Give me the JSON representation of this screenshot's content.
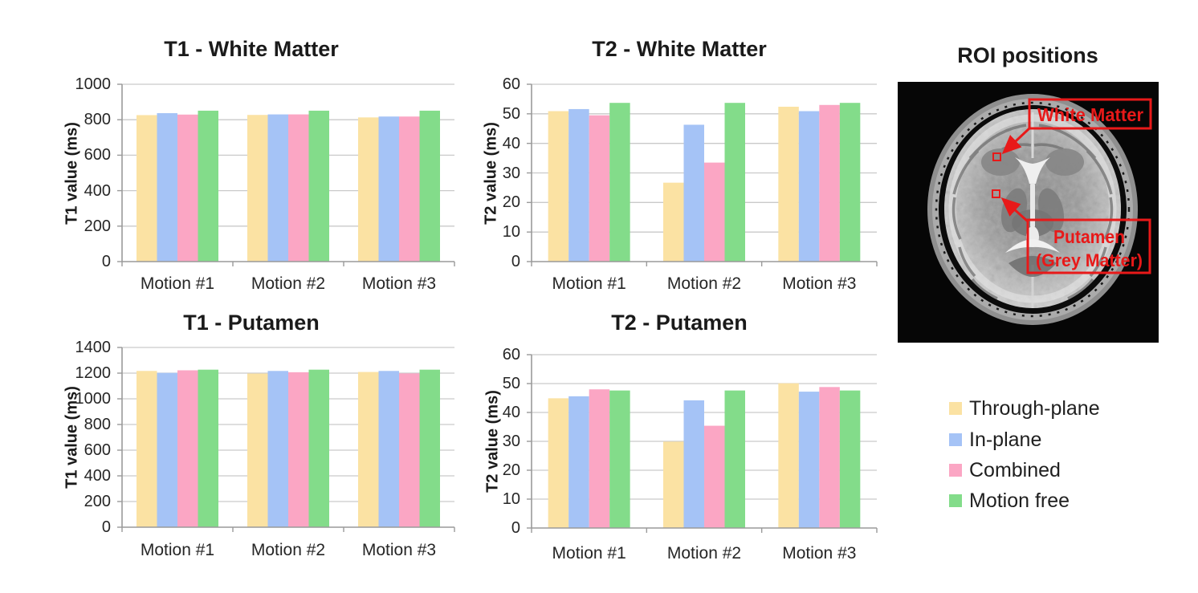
{
  "figure": {
    "background": "#ffffff",
    "roi_panel": {
      "title": "ROI positions",
      "white_matter_label": "White Matter",
      "putamen_label_line1": "Putamen",
      "putamen_label_line2": "(Grey Matter)",
      "annotation_color": "#e81919"
    },
    "legend": {
      "position": "right-bottom",
      "items": [
        {
          "label": "Through-plane",
          "color": "#fbe2a3"
        },
        {
          "label": "In-plane",
          "color": "#a5c3f6"
        },
        {
          "label": "Combined",
          "color": "#fba6c4"
        },
        {
          "label": "Motion free",
          "color": "#83dc8a"
        }
      ]
    }
  },
  "chart_data": [
    {
      "type": "bar",
      "title": "T1 - White Matter",
      "ylabel": "T1 value (ms)",
      "ylim": [
        0,
        1000
      ],
      "ytick_step": 200,
      "yticks": [
        0,
        200,
        400,
        600,
        800,
        1000
      ],
      "grid": true,
      "categories": [
        "Motion #1",
        "Motion #2",
        "Motion #3"
      ],
      "series": [
        {
          "name": "Through-plane",
          "values": [
            826,
            827,
            813
          ]
        },
        {
          "name": "In-plane",
          "values": [
            837,
            830,
            818
          ]
        },
        {
          "name": "Combined",
          "values": [
            829,
            830,
            818
          ]
        },
        {
          "name": "Motion free",
          "values": [
            851,
            851,
            851
          ]
        }
      ]
    },
    {
      "type": "bar",
      "title": "T2 - White Matter",
      "ylabel": "T2 value (ms)",
      "ylim": [
        0,
        60
      ],
      "ytick_step": 10,
      "yticks": [
        0,
        10,
        20,
        30,
        40,
        50,
        60
      ],
      "grid": true,
      "categories": [
        "Motion #1",
        "Motion #2",
        "Motion #3"
      ],
      "series": [
        {
          "name": "Through-plane",
          "values": [
            50.9,
            26.7,
            52.4
          ]
        },
        {
          "name": "In-plane",
          "values": [
            51.6,
            46.3,
            50.9
          ]
        },
        {
          "name": "Combined",
          "values": [
            49.5,
            33.5,
            53.0
          ]
        },
        {
          "name": "Motion free",
          "values": [
            53.7,
            53.7,
            53.7
          ]
        }
      ]
    },
    {
      "type": "bar",
      "title": "T1 - Putamen",
      "ylabel": "T1 value (ms)",
      "ylim": [
        0,
        1400
      ],
      "ytick_step": 200,
      "yticks": [
        0,
        200,
        400,
        600,
        800,
        1000,
        1200,
        1400
      ],
      "grid": true,
      "categories": [
        "Motion #1",
        "Motion #2",
        "Motion #3"
      ],
      "series": [
        {
          "name": "Through-plane",
          "values": [
            1217,
            1197,
            1209
          ]
        },
        {
          "name": "In-plane",
          "values": [
            1202,
            1217,
            1217
          ]
        },
        {
          "name": "Combined",
          "values": [
            1222,
            1207,
            1198
          ]
        },
        {
          "name": "Motion free",
          "values": [
            1227,
            1227,
            1227
          ]
        }
      ]
    },
    {
      "type": "bar",
      "title": "T2 - Putamen",
      "ylabel": "T2 value (ms)",
      "ylim": [
        0,
        60
      ],
      "ytick_step": 10,
      "yticks": [
        0,
        10,
        20,
        30,
        40,
        50,
        60
      ],
      "grid": true,
      "categories": [
        "Motion #1",
        "Motion #2",
        "Motion #3"
      ],
      "series": [
        {
          "name": "Through-plane",
          "values": [
            44.9,
            29.9,
            50.1
          ]
        },
        {
          "name": "In-plane",
          "values": [
            45.6,
            44.2,
            47.2
          ]
        },
        {
          "name": "Combined",
          "values": [
            48.0,
            35.4,
            48.8
          ]
        },
        {
          "name": "Motion free",
          "values": [
            47.6,
            47.6,
            47.6
          ]
        }
      ]
    }
  ]
}
